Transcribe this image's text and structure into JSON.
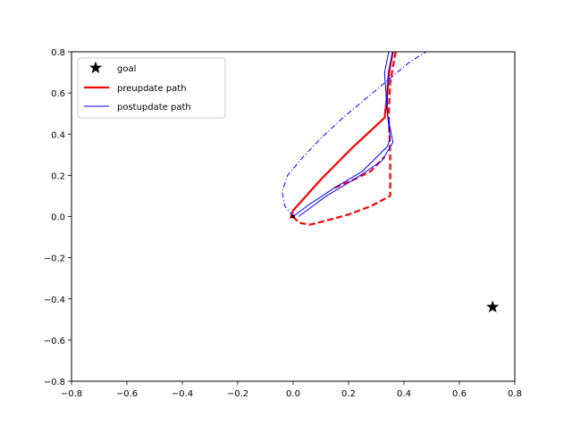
{
  "chart_data": {
    "type": "line",
    "title": "",
    "xlabel": "",
    "ylabel": "",
    "xlim": [
      -0.8,
      0.8
    ],
    "ylim": [
      -0.8,
      0.8
    ],
    "grid": false,
    "legend_position": "top-left",
    "xticks": [
      "−0.8",
      "−0.6",
      "−0.4",
      "−0.2",
      "0.0",
      "0.2",
      "0.4",
      "0.6",
      "0.8"
    ],
    "yticks": [
      "−0.8",
      "−0.6",
      "−0.4",
      "−0.2",
      "0.0",
      "0.2",
      "0.4",
      "0.6",
      "0.8"
    ],
    "xtick_values": [
      -0.8,
      -0.6,
      -0.4,
      -0.2,
      0.0,
      0.2,
      0.4,
      0.6,
      0.8
    ],
    "ytick_values": [
      -0.8,
      -0.6,
      -0.4,
      -0.2,
      0.0,
      0.2,
      0.4,
      0.6,
      0.8
    ],
    "legend": [
      {
        "label": "goal",
        "marker": "star",
        "color": "#000000"
      },
      {
        "label": "preupdate path",
        "line": "solid",
        "color": "#ff0000",
        "width": "thick"
      },
      {
        "label": "postupdate path",
        "line": "solid",
        "color": "#0000ff",
        "width": "thin"
      }
    ],
    "goal": {
      "x": 0.72,
      "y": -0.44,
      "color": "#000000"
    },
    "start": {
      "x": 0.0,
      "y": 0.0,
      "color": "#000000"
    },
    "series": [
      {
        "name": "preupdate path",
        "color": "#ff0000",
        "style": "solid",
        "width": "thick",
        "points": [
          [
            -0.01,
            -0.01
          ],
          [
            0.0,
            0.03
          ],
          [
            0.1,
            0.18
          ],
          [
            0.21,
            0.33
          ],
          [
            0.33,
            0.48
          ],
          [
            0.34,
            0.6
          ],
          [
            0.345,
            0.7
          ],
          [
            0.36,
            0.8
          ]
        ]
      },
      {
        "name": "",
        "color": "#ff0000",
        "style": "dashed",
        "width": "thick",
        "points": [
          [
            0.0,
            0.0
          ],
          [
            0.02,
            -0.03
          ],
          [
            0.06,
            -0.04
          ],
          [
            0.12,
            -0.02
          ],
          [
            0.2,
            0.01
          ],
          [
            0.28,
            0.05
          ],
          [
            0.35,
            0.1
          ],
          [
            0.35,
            0.3
          ],
          [
            0.345,
            0.5
          ],
          [
            0.35,
            0.65
          ],
          [
            0.37,
            0.8
          ]
        ]
      },
      {
        "name": "",
        "color": "#ff0000",
        "style": "dashed",
        "width": "thick",
        "points": [
          [
            0.15,
            0.14
          ],
          [
            0.22,
            0.18
          ],
          [
            0.28,
            0.22
          ],
          [
            0.33,
            0.29
          ]
        ]
      },
      {
        "name": "postupdate path",
        "color": "#0000ff",
        "style": "solid",
        "width": "thin",
        "points": [
          [
            0.02,
            0.0
          ],
          [
            0.12,
            0.1
          ],
          [
            0.22,
            0.18
          ],
          [
            0.32,
            0.27
          ],
          [
            0.36,
            0.36
          ],
          [
            0.34,
            0.5
          ],
          [
            0.34,
            0.62
          ],
          [
            0.35,
            0.72
          ],
          [
            0.36,
            0.8
          ]
        ]
      },
      {
        "name": "",
        "color": "#0000ff",
        "style": "solid",
        "width": "thin",
        "points": [
          [
            0.0,
            0.0
          ],
          [
            0.06,
            0.06
          ],
          [
            0.15,
            0.14
          ],
          [
            0.25,
            0.22
          ],
          [
            0.34,
            0.34
          ],
          [
            0.35,
            0.38
          ],
          [
            0.34,
            0.5
          ],
          [
            0.33,
            0.7
          ],
          [
            0.345,
            0.8
          ]
        ]
      },
      {
        "name": "",
        "color": "#0000ff",
        "style": "dashdot",
        "width": "thin",
        "points": [
          [
            0.0,
            0.0
          ],
          [
            -0.03,
            0.05
          ],
          [
            -0.04,
            0.12
          ],
          [
            -0.02,
            0.2
          ],
          [
            0.03,
            0.28
          ],
          [
            0.1,
            0.38
          ],
          [
            0.18,
            0.48
          ],
          [
            0.26,
            0.57
          ],
          [
            0.34,
            0.66
          ],
          [
            0.42,
            0.75
          ],
          [
            0.48,
            0.8
          ]
        ]
      }
    ]
  }
}
